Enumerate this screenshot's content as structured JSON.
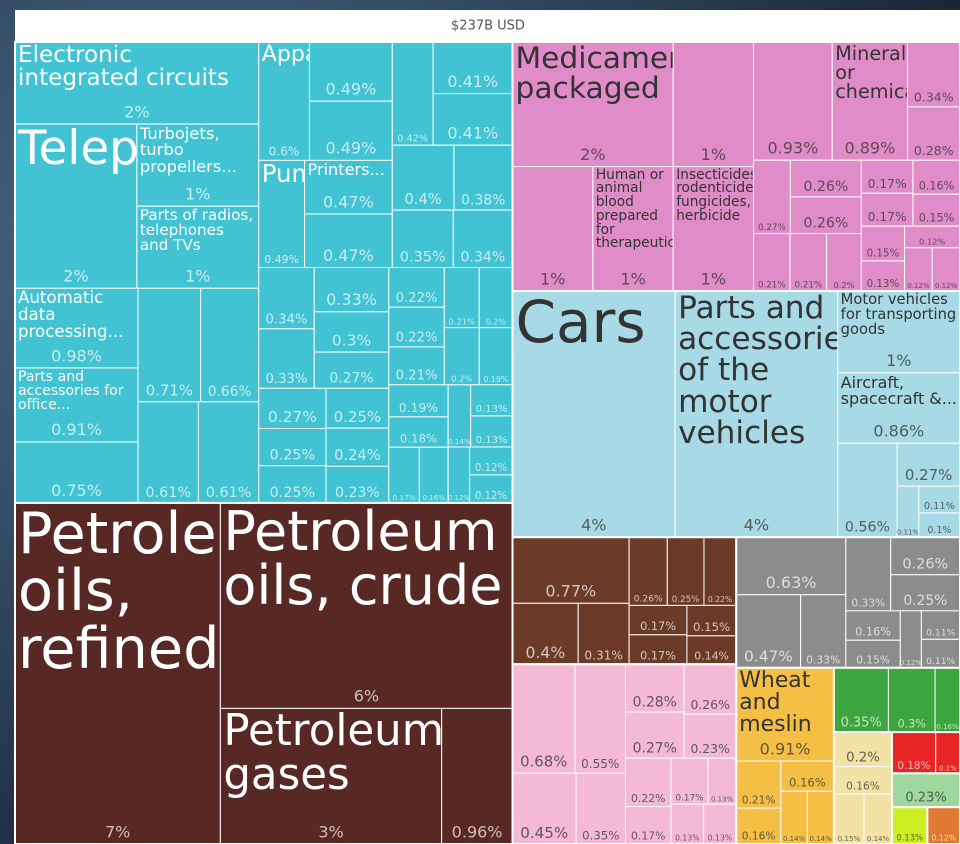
{
  "chart_data": {
    "type": "treemap",
    "title": "$237B USD",
    "groups": [
      {
        "color": "#41c3d3",
        "items": [
          {
            "name": "Electronic integrated circuits",
            "value": 2,
            "value_label": "2%"
          },
          {
            "name": "Telephone",
            "value": 2,
            "value_label": "2%"
          },
          {
            "name": "Turbojets, turbo propellers...",
            "value": 1,
            "value_label": "1%"
          },
          {
            "name": "Parts of radios, telephones and TVs",
            "value": 1,
            "value_label": "1%"
          },
          {
            "name": "Automatic data processing...",
            "value": 0.98,
            "value_label": "0.98%"
          },
          {
            "name": "Parts and accessories for office...",
            "value": 0.91,
            "value_label": "0.91%"
          },
          {
            "value": 0.75,
            "value_label": "0.75%"
          },
          {
            "value": 0.71,
            "value_label": "0.71%"
          },
          {
            "value": 0.66,
            "value_label": "0.66%"
          },
          {
            "value": 0.61,
            "value_label": "0.61%"
          },
          {
            "value": 0.61,
            "value_label": "0.61%"
          },
          {
            "name": "Apparatus...",
            "value": 0.6,
            "value_label": "0.6%"
          },
          {
            "value": 0.49,
            "value_label": "0.49%"
          },
          {
            "value": 0.49,
            "value_label": "0.49%"
          },
          {
            "name": "Pumps...",
            "value": 0.49,
            "value_label": "0.49%"
          },
          {
            "name": "Printers...",
            "value": 0.47,
            "value_label": "0.47%"
          },
          {
            "value": 0.47,
            "value_label": "0.47%"
          },
          {
            "value": 0.42,
            "value_label": "0.42%"
          },
          {
            "value": 0.41,
            "value_label": "0.41%"
          },
          {
            "value": 0.41,
            "value_label": "0.41%"
          },
          {
            "value": 0.4,
            "value_label": "0.4%"
          },
          {
            "value": 0.38,
            "value_label": "0.38%"
          },
          {
            "value": 0.35,
            "value_label": "0.35%"
          },
          {
            "value": 0.34,
            "value_label": "0.34%"
          },
          {
            "value": 0.34,
            "value_label": "0.34%"
          },
          {
            "value": 0.33,
            "value_label": "0.33%"
          },
          {
            "value": 0.33,
            "value_label": "0.33%"
          },
          {
            "value": 0.3,
            "value_label": "0.3%"
          },
          {
            "value": 0.27,
            "value_label": "0.27%"
          },
          {
            "value": 0.27,
            "value_label": "0.27%"
          },
          {
            "value": 0.25,
            "value_label": "0.25%"
          },
          {
            "value": 0.25,
            "value_label": "0.25%"
          },
          {
            "value": 0.25,
            "value_label": "0.25%"
          },
          {
            "value": 0.24,
            "value_label": "0.24%"
          },
          {
            "value": 0.23,
            "value_label": "0.23%"
          },
          {
            "value": 0.22,
            "value_label": "0.22%"
          },
          {
            "value": 0.22,
            "value_label": "0.22%"
          },
          {
            "value": 0.21,
            "value_label": "0.21%"
          },
          {
            "value": 0.21,
            "value_label": "0.21%"
          },
          {
            "value": 0.2,
            "value_label": "0.2%"
          },
          {
            "value": 0.2,
            "value_label": "0.2%"
          },
          {
            "value": 0.19,
            "value_label": "0.19%"
          },
          {
            "value": 0.19,
            "value_label": "0.19%"
          },
          {
            "value": 0.18,
            "value_label": "0.18%"
          },
          {
            "value": 0.17,
            "value_label": "0.17%"
          },
          {
            "value": 0.16,
            "value_label": "0.16%"
          },
          {
            "value": 0.14,
            "value_label": "0.14%"
          },
          {
            "value": 0.13,
            "value_label": "0.13%"
          },
          {
            "value": 0.13,
            "value_label": "0.13%"
          },
          {
            "value": 0.12,
            "value_label": "0.12%"
          },
          {
            "value": 0.12,
            "value_label": "0.12%"
          },
          {
            "value": 0.12,
            "value_label": "0.12%"
          }
        ]
      },
      {
        "color": "#572824",
        "items": [
          {
            "name": "Petroleum oils, refined",
            "value": 7,
            "value_label": "7%"
          },
          {
            "name": "Petroleum oils, crude",
            "value": 6,
            "value_label": "6%"
          },
          {
            "name": "Petroleum gases",
            "value": 3,
            "value_label": "3%"
          },
          {
            "value": 0.96,
            "value_label": "0.96%"
          }
        ]
      },
      {
        "color": "#e08cc9",
        "items": [
          {
            "name": "Medicaments, packaged",
            "value": 2,
            "value_label": "2%"
          },
          {
            "value": 1,
            "value_label": "1%"
          },
          {
            "value": 1,
            "value_label": "1%"
          },
          {
            "name": "Human or animal blood prepared for therapeutic...",
            "value": 1,
            "value_label": "1%"
          },
          {
            "name": "Insecticides, rodenticides, fungicides, herbicide",
            "value": 1,
            "value_label": "1%"
          },
          {
            "value": 0.93,
            "value_label": "0.93%"
          },
          {
            "name": "Mineral or chemical...",
            "value": 0.89,
            "value_label": "0.89%"
          },
          {
            "value": 0.34,
            "value_label": "0.34%"
          },
          {
            "value": 0.28,
            "value_label": "0.28%"
          },
          {
            "value": 0.27,
            "value_label": "0.27%"
          },
          {
            "value": 0.26,
            "value_label": "0.26%"
          },
          {
            "value": 0.26,
            "value_label": "0.26%"
          },
          {
            "value": 0.21,
            "value_label": "0.21%"
          },
          {
            "value": 0.21,
            "value_label": "0.21%"
          },
          {
            "value": 0.2,
            "value_label": "0.2%"
          },
          {
            "value": 0.17,
            "value_label": "0.17%"
          },
          {
            "value": 0.17,
            "value_label": "0.17%"
          },
          {
            "value": 0.16,
            "value_label": "0.16%"
          },
          {
            "value": 0.15,
            "value_label": "0.15%"
          },
          {
            "value": 0.15,
            "value_label": "0.15%"
          },
          {
            "value": 0.13,
            "value_label": "0.13%"
          },
          {
            "value": 0.12,
            "value_label": "0.12%"
          },
          {
            "value": 0.12,
            "value_label": "0.12%"
          },
          {
            "value": 0.12,
            "value_label": "0.12%"
          }
        ]
      },
      {
        "color": "#a8d9e6",
        "items": [
          {
            "name": "Cars",
            "value": 4,
            "value_label": "4%"
          },
          {
            "name": "Parts and accessories of the motor vehicles",
            "value": 4,
            "value_label": "4%"
          },
          {
            "name": "Motor vehicles for transporting goods",
            "value": 1,
            "value_label": "1%"
          },
          {
            "name": "Aircraft, spacecraft &...",
            "value": 0.86,
            "value_label": "0.86%"
          },
          {
            "value": 0.56,
            "value_label": "0.56%"
          },
          {
            "value": 0.27,
            "value_label": "0.27%"
          },
          {
            "value": 0.11,
            "value_label": "0.11%"
          },
          {
            "value": 0.11,
            "value_label": "0.11%"
          },
          {
            "value": 0.1,
            "value_label": "0.1%"
          }
        ]
      },
      {
        "color": "#6b3b28",
        "items": [
          {
            "value": 0.77,
            "value_label": "0.77%"
          },
          {
            "value": 0.4,
            "value_label": "0.4%"
          },
          {
            "value": 0.31,
            "value_label": "0.31%"
          },
          {
            "value": 0.26,
            "value_label": "0.26%"
          },
          {
            "value": 0.25,
            "value_label": "0.25%"
          },
          {
            "value": 0.22,
            "value_label": "0.22%"
          },
          {
            "value": 0.17,
            "value_label": "0.17%"
          },
          {
            "value": 0.17,
            "value_label": "0.17%"
          },
          {
            "value": 0.15,
            "value_label": "0.15%"
          },
          {
            "value": 0.14,
            "value_label": "0.14%"
          }
        ]
      },
      {
        "color": "#f3b9d5",
        "items": [
          {
            "value": 0.68,
            "value_label": "0.68%"
          },
          {
            "value": 0.55,
            "value_label": "0.55%"
          },
          {
            "value": 0.45,
            "value_label": "0.45%"
          },
          {
            "value": 0.35,
            "value_label": "0.35%"
          },
          {
            "value": 0.28,
            "value_label": "0.28%"
          },
          {
            "value": 0.27,
            "value_label": "0.27%"
          },
          {
            "value": 0.26,
            "value_label": "0.26%"
          },
          {
            "value": 0.23,
            "value_label": "0.23%"
          },
          {
            "value": 0.22,
            "value_label": "0.22%"
          },
          {
            "value": 0.17,
            "value_label": "0.17%"
          },
          {
            "value": 0.17,
            "value_label": "0.17%"
          },
          {
            "value": 0.13,
            "value_label": "0.13%"
          },
          {
            "value": 0.13,
            "value_label": "0.13%"
          },
          {
            "value": 0.13,
            "value_label": "0.13%"
          }
        ]
      },
      {
        "color": "#8c8c8c",
        "items": [
          {
            "value": 0.63,
            "value_label": "0.63%"
          },
          {
            "value": 0.47,
            "value_label": "0.47%"
          },
          {
            "value": 0.33,
            "value_label": "0.33%"
          },
          {
            "value": 0.33,
            "value_label": "0.33%"
          },
          {
            "value": 0.26,
            "value_label": "0.26%"
          },
          {
            "value": 0.25,
            "value_label": "0.25%"
          },
          {
            "value": 0.16,
            "value_label": "0.16%"
          },
          {
            "value": 0.15,
            "value_label": "0.15%"
          },
          {
            "value": 0.12,
            "value_label": "0.12%"
          },
          {
            "value": 0.11,
            "value_label": "0.11%"
          },
          {
            "value": 0.11,
            "value_label": "0.11%"
          }
        ]
      },
      {
        "color": "#f5bf45",
        "items": [
          {
            "name": "Wheat and meslin",
            "value": 0.91,
            "value_label": "0.91%"
          },
          {
            "value": 0.21,
            "value_label": "0.21%"
          },
          {
            "value": 0.16,
            "value_label": "0.16%"
          },
          {
            "value": 0.16,
            "value_label": "0.16%"
          },
          {
            "value": 0.14,
            "value_label": "0.14%"
          },
          {
            "value": 0.14,
            "value_label": "0.14%"
          }
        ]
      },
      {
        "color": "#3ea63e",
        "items": [
          {
            "value": 0.35,
            "value_label": "0.35%"
          },
          {
            "value": 0.3,
            "value_label": "0.3%"
          },
          {
            "value": 0.16,
            "value_label": "0.16%"
          }
        ]
      },
      {
        "color": "#f3e2a6",
        "items": [
          {
            "value": 0.2,
            "value_label": "0.2%"
          },
          {
            "value": 0.16,
            "value_label": "0.16%"
          },
          {
            "value": 0.15,
            "value_label": "0.15%"
          },
          {
            "value": 0.14,
            "value_label": "0.14%"
          }
        ]
      },
      {
        "color": "#e82424",
        "items": [
          {
            "value": 0.18,
            "value_label": "0.18%"
          },
          {
            "value": 0.1,
            "value_label": "0.1%"
          }
        ]
      },
      {
        "color": "#9ed89c",
        "items": [
          {
            "value": 0.23,
            "value_label": "0.23%"
          }
        ]
      },
      {
        "color": "#ccee22",
        "items": [
          {
            "value": 0.13,
            "value_label": "0.13%"
          }
        ]
      },
      {
        "color": "#e07a30",
        "items": [
          {
            "value": 0.12,
            "value_label": "0.12%"
          }
        ]
      }
    ]
  }
}
